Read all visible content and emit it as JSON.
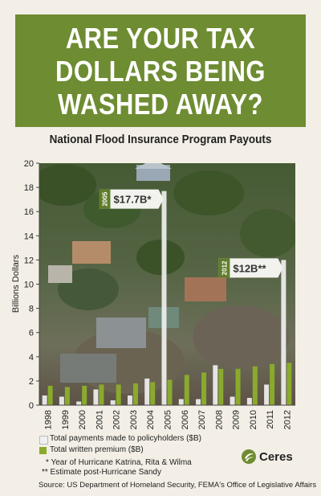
{
  "banner": {
    "line1": "ARE YOUR TAX",
    "line2": "DOLLARS BEING",
    "line3": "WASHED AWAY?"
  },
  "legend": {
    "payments": "Total payments made to policyholders ($B)",
    "premium": "Total written premium ($B)"
  },
  "notes": {
    "star": "* Year of Hurricane Katrina, Rita & Wilma",
    "double_star": "** Estimate post-Hurricane Sandy"
  },
  "source": "Source: US Department of Homeland Security, FEMA's Office of Legislative Affairs",
  "brand": {
    "name": "Ceres"
  },
  "colors": {
    "banner_green": "#6e8c32",
    "premium_green": "#8aaa2c",
    "payments_white": "#f0f0f0",
    "callout_green": "#5f7d2a"
  },
  "chart_data": {
    "type": "bar",
    "title": "National Flood Insurance Program Payouts",
    "ylabel": "Billions Dollars",
    "ylim": [
      0,
      20
    ],
    "yticks": [
      "0",
      "2",
      "4",
      "6",
      "8",
      "10",
      "12",
      "14",
      "16",
      "18",
      "20"
    ],
    "categories": [
      "1998",
      "1999",
      "2000",
      "2001",
      "2002",
      "2003",
      "2004",
      "2005",
      "2006",
      "2007",
      "2008",
      "2009",
      "2010",
      "2011",
      "2012"
    ],
    "series": [
      {
        "name": "Total payments made to policyholders ($B)",
        "values": [
          0.8,
          0.7,
          0.3,
          1.3,
          0.4,
          0.8,
          2.2,
          17.7,
          0.5,
          0.5,
          3.3,
          0.7,
          0.6,
          1.7,
          12.0
        ]
      },
      {
        "name": "Total written premium ($B)",
        "values": [
          1.6,
          1.5,
          1.6,
          1.7,
          1.7,
          1.8,
          1.9,
          2.1,
          2.5,
          2.7,
          3.0,
          3.0,
          3.2,
          3.4,
          3.5
        ]
      }
    ],
    "annotations": [
      {
        "year": "2005",
        "value": "$17.7B*"
      },
      {
        "year": "2012",
        "value": "$12B**"
      }
    ]
  }
}
